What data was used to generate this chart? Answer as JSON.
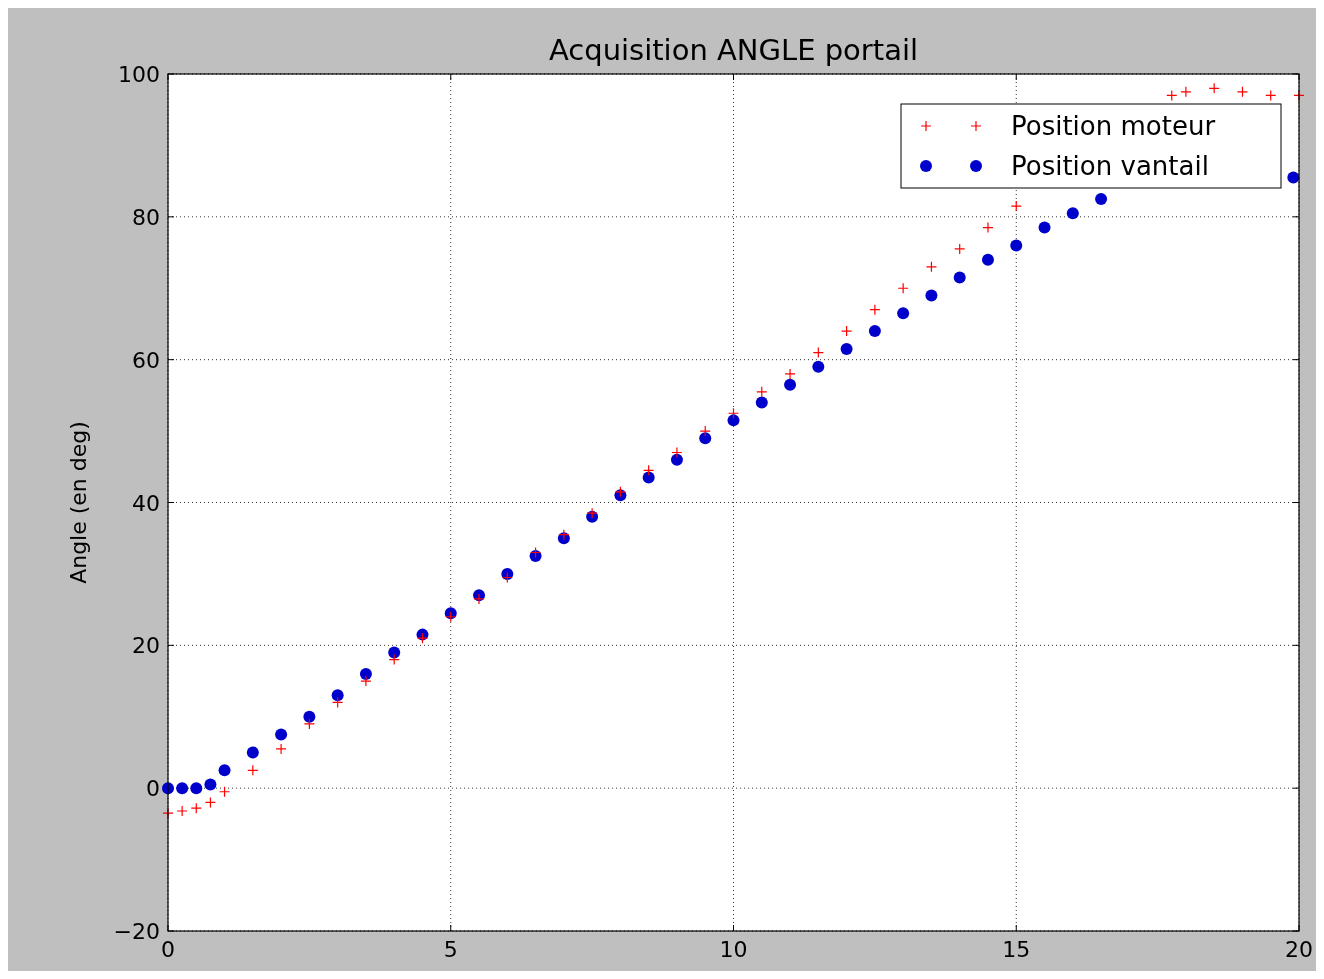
{
  "chart_data": {
    "type": "scatter",
    "title": "Acquisition ANGLE portail",
    "ylabel": "Angle (en deg)",
    "xlim": [
      0,
      20
    ],
    "xticks": [
      0,
      5,
      10,
      15,
      20
    ],
    "ylim": [
      -20,
      100
    ],
    "yticks": [
      {
        "value": -20,
        "label": "−20"
      },
      0,
      20,
      40,
      60,
      80,
      100
    ],
    "grid": true,
    "legend": "top right",
    "series": [
      {
        "name": "Position moteur",
        "color": "#ff0000",
        "marker": "cross",
        "x": [
          0,
          0.25,
          0.5,
          0.75,
          1,
          1.5,
          2,
          2.5,
          3,
          3.5,
          4,
          4.5,
          5,
          5.5,
          6,
          6.5,
          7,
          7.5,
          8,
          8.5,
          9,
          9.5,
          10,
          10.5,
          11,
          11.5,
          12,
          12.5,
          13,
          13.5,
          14,
          14.5,
          15,
          17.75,
          18,
          18.5,
          19,
          19.5,
          20
        ],
        "values": [
          -3.5,
          -3.2,
          -2.8,
          -2,
          -0.5,
          2.5,
          5.5,
          9,
          12,
          15,
          18,
          21,
          24,
          26.5,
          29.5,
          33,
          35.5,
          38.5,
          41.5,
          44.5,
          47,
          50,
          52.5,
          55.5,
          58,
          61,
          64,
          67,
          70,
          73,
          75.5,
          78.5,
          81.5,
          97,
          97.5,
          98,
          97.5,
          97,
          97
        ]
      },
      {
        "name": "Position vantail",
        "color": "#0000cc",
        "marker": "circle",
        "x": [
          0,
          0.25,
          0.5,
          0.75,
          1,
          1.5,
          2,
          2.5,
          3,
          3.5,
          4,
          4.5,
          5,
          5.5,
          6,
          6.5,
          7,
          7.5,
          8,
          8.5,
          9,
          9.5,
          10,
          10.5,
          11,
          11.5,
          12,
          12.5,
          13,
          13.5,
          14,
          14.5,
          15,
          15.5,
          16,
          16.5,
          19.9
        ],
        "values": [
          0,
          0,
          0,
          0.5,
          2.5,
          5,
          7.5,
          10,
          13,
          16,
          19,
          21.5,
          24.5,
          27,
          30,
          32.5,
          35,
          38,
          41,
          43.5,
          46,
          49,
          51.5,
          54,
          56.5,
          59,
          61.5,
          64,
          66.5,
          69,
          71.5,
          74,
          76,
          78.5,
          80.5,
          82.5,
          85.5
        ]
      }
    ]
  }
}
